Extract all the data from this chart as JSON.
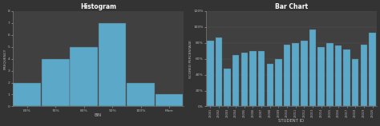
{
  "hist_title": "Histogram",
  "hist_xlabel": "BIN",
  "hist_ylabel": "FREQUENCY",
  "hist_bins": [
    "60%",
    "70%",
    "80%",
    "90%",
    "100%",
    "More"
  ],
  "hist_values": [
    2,
    4,
    5,
    7,
    2,
    1
  ],
  "hist_bar_color": "#5BA8C8",
  "hist_bg": "#404040",
  "hist_ylim": [
    0,
    8
  ],
  "hist_yticks": [
    0,
    1,
    2,
    3,
    4,
    5,
    6,
    7,
    8
  ],
  "bar_title": "Bar Chart",
  "bar_xlabel": "STUDENT ID",
  "bar_ylabel": "SCORED PERCENTAGE",
  "bar_ids": [
    "22001",
    "22002",
    "22003",
    "22004",
    "22005",
    "22006",
    "22007",
    "22008",
    "22009",
    "22010",
    "22011",
    "22012",
    "22013",
    "22014",
    "22015",
    "22016",
    "22017",
    "22018",
    "22019",
    "22020"
  ],
  "bar_values": [
    83,
    87,
    48,
    65,
    68,
    70,
    70,
    54,
    60,
    78,
    80,
    83,
    97,
    75,
    80,
    77,
    72,
    60,
    78,
    93
  ],
  "bar_color": "#5BA8C8",
  "bar_bg": "#404040",
  "bar_ylim": [
    0,
    120
  ],
  "bar_yticks": [
    0,
    20,
    40,
    60,
    80,
    100,
    120
  ],
  "bar_ytick_labels": [
    "0%",
    "20%",
    "40%",
    "60%",
    "80%",
    "100%",
    "120%"
  ],
  "fig_bg": "#333333",
  "title_color": "#FFFFFF",
  "label_color": "#BBBBBB",
  "tick_color": "#BBBBBB",
  "axis_color": "#888888",
  "grid_color": "#666666",
  "fig_width": 4.74,
  "fig_height": 1.58,
  "dpi": 100
}
